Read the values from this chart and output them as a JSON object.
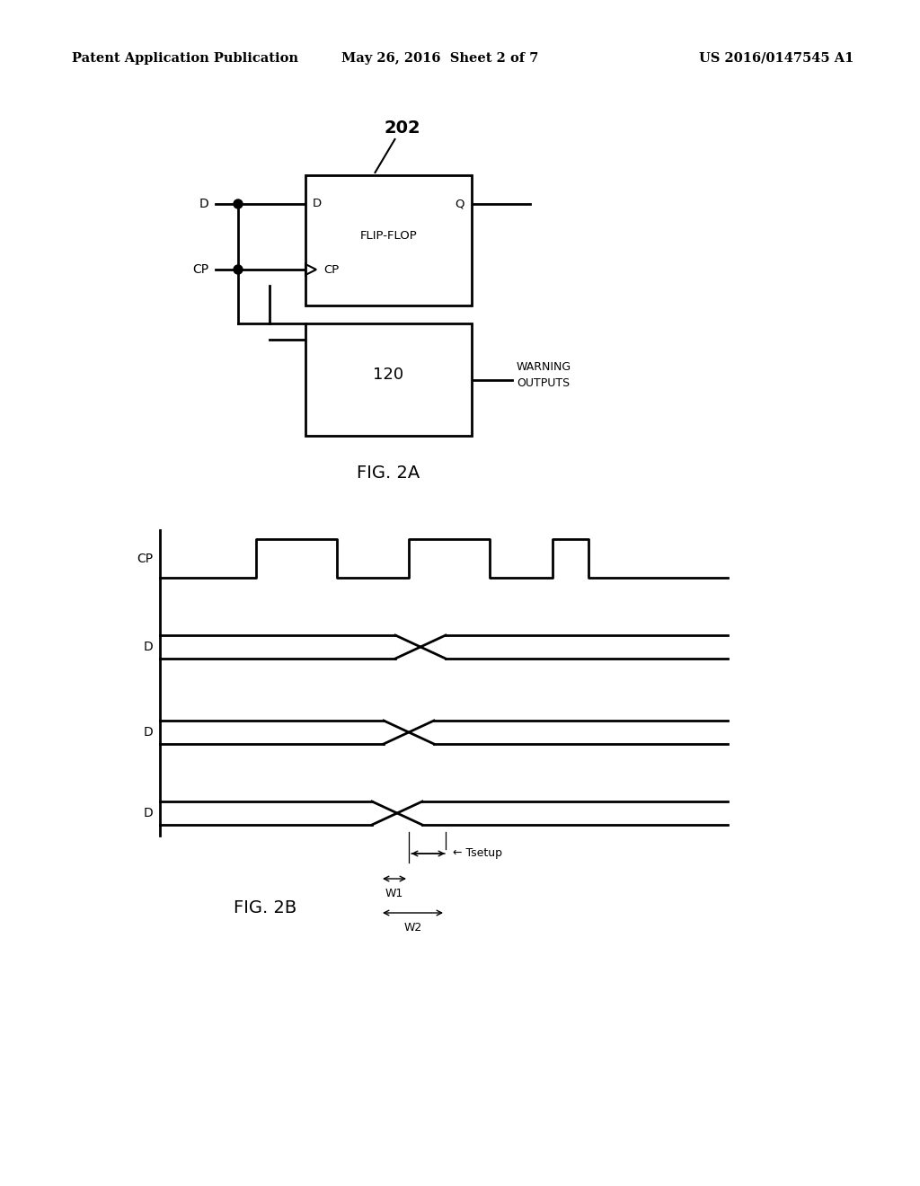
{
  "bg_color": "#ffffff",
  "text_color": "#000000",
  "header_left": "Patent Application Publication",
  "header_center": "May 26, 2016  Sheet 2 of 7",
  "header_right": "US 2016/0147545 A1",
  "fig2a_label": "FIG. 2A",
  "fig2b_label": "FIG. 2B",
  "flipflop_label": "FLIP-FLOP",
  "flipflop_ref": "202",
  "block120_ref": "120",
  "warning_text": "WARNING\nOUTPUTS",
  "D_input": "D",
  "CP_input": "CP",
  "Q_output": "Q",
  "CP_ff_label": "CP",
  "D_ff_label": "D",
  "tsetup_label": "← Tsetup",
  "W1_label": "W1",
  "W2_label": "W2",
  "cp_signal_label": "CP",
  "d1_signal_label": "D",
  "d2_signal_label": "D",
  "d3_signal_label": "D"
}
